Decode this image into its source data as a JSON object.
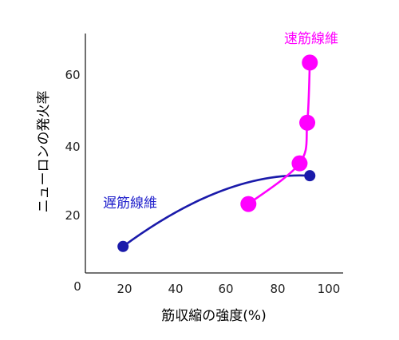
{
  "chart_data": {
    "type": "line",
    "title": "",
    "xlabel": "筋収縮の強度(%)",
    "ylabel": "ニューロンの発火率",
    "xlim": [
      0,
      100
    ],
    "ylim": [
      0,
      70
    ],
    "x_ticks": [
      "0",
      "20",
      "40",
      "60",
      "80",
      "100"
    ],
    "y_ticks": [
      "20",
      "40",
      "60"
    ],
    "grid": false,
    "legend": "none",
    "series": [
      {
        "name": "遅筋線維",
        "color": "#1a1aaa",
        "label_color": "#2222cc",
        "points": [
          {
            "x": 18,
            "y": 11
          },
          {
            "x": 91,
            "y": 31
          }
        ]
      },
      {
        "name": "速筋線維",
        "color": "#ff00ff",
        "label_color": "#ff00ff",
        "points": [
          {
            "x": 67,
            "y": 23
          },
          {
            "x": 87,
            "y": 34.5
          },
          {
            "x": 90,
            "y": 46
          },
          {
            "x": 91,
            "y": 63
          }
        ]
      }
    ]
  }
}
